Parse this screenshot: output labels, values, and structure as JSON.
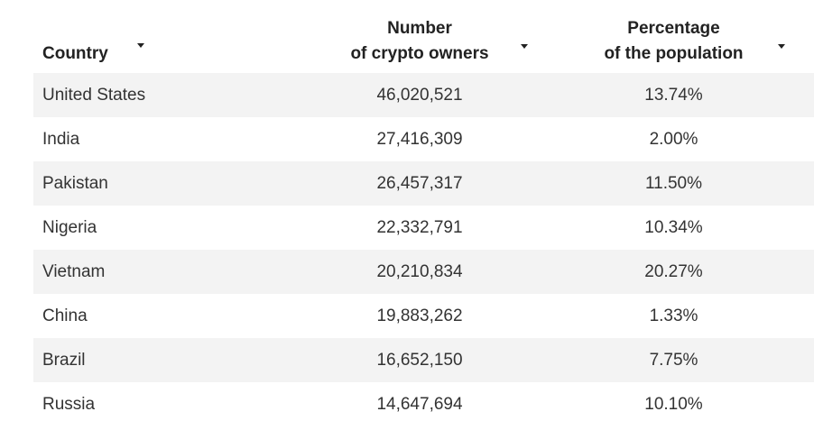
{
  "table": {
    "headers": {
      "country": "Country",
      "owners_line1": "Number",
      "owners_line2": "of crypto owners",
      "pct_line1": "Percentage",
      "pct_line2": "of the population"
    },
    "rows": [
      {
        "country": "United States",
        "owners": "46,020,521",
        "pct": "13.74%"
      },
      {
        "country": "India",
        "owners": "27,416,309",
        "pct": "2.00%"
      },
      {
        "country": "Pakistan",
        "owners": "26,457,317",
        "pct": "11.50%"
      },
      {
        "country": "Nigeria",
        "owners": "22,332,791",
        "pct": "10.34%"
      },
      {
        "country": "Vietnam",
        "owners": "20,210,834",
        "pct": "20.27%"
      },
      {
        "country": "China",
        "owners": "19,883,262",
        "pct": "1.33%"
      },
      {
        "country": "Brazil",
        "owners": "16,652,150",
        "pct": "7.75%"
      },
      {
        "country": "Russia",
        "owners": "14,647,694",
        "pct": "10.10%"
      }
    ],
    "sort_icons": [
      "sort-caret-icon",
      "sort-caret-icon",
      "sort-caret-icon"
    ]
  },
  "chart_data": {
    "type": "table",
    "columns": [
      "Country",
      "Number of crypto owners",
      "Percentage of the population"
    ],
    "rows": [
      [
        "United States",
        46020521,
        13.74
      ],
      [
        "India",
        27416309,
        2.0
      ],
      [
        "Pakistan",
        26457317,
        11.5
      ],
      [
        "Nigeria",
        22332791,
        10.34
      ],
      [
        "Vietnam",
        20210834,
        20.27
      ],
      [
        "China",
        19883262,
        1.33
      ],
      [
        "Brazil",
        16652150,
        7.75
      ],
      [
        "Russia",
        14647694,
        10.1
      ]
    ]
  }
}
